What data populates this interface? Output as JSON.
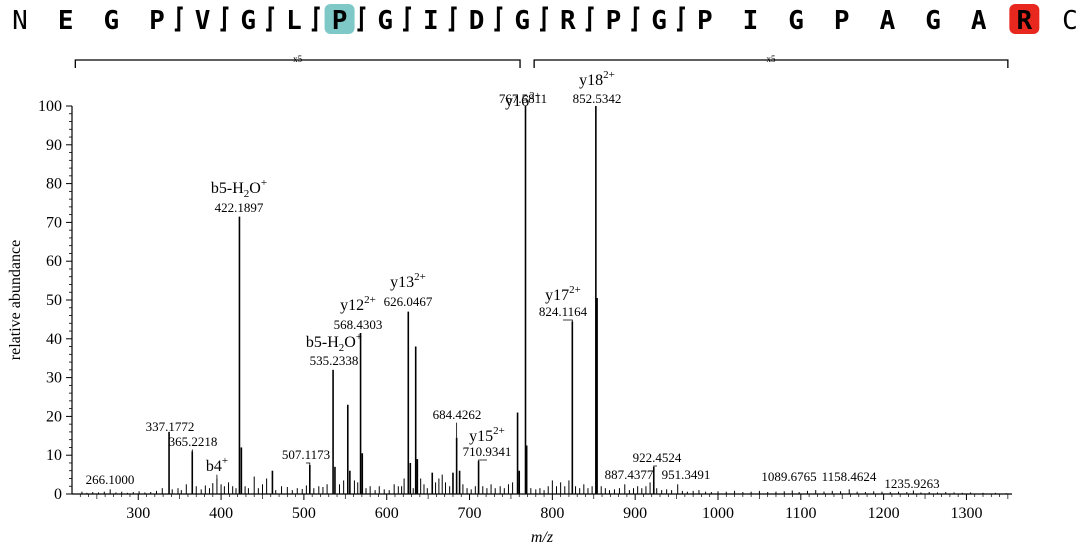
{
  "sequence": {
    "residues": [
      {
        "aa": "N",
        "style": "plain"
      },
      {
        "aa": "E",
        "style": "bold"
      },
      {
        "aa": "G",
        "style": "bold"
      },
      {
        "aa": "P",
        "style": "bold"
      },
      {
        "aa": "V",
        "style": "bold"
      },
      {
        "aa": "G",
        "style": "bold"
      },
      {
        "aa": "L",
        "style": "bold"
      },
      {
        "aa": "P",
        "style": "bold",
        "highlight": "#7ec8c8"
      },
      {
        "aa": "G",
        "style": "bold"
      },
      {
        "aa": "I",
        "style": "bold"
      },
      {
        "aa": "D",
        "style": "bold"
      },
      {
        "aa": "G",
        "style": "bold"
      },
      {
        "aa": "R",
        "style": "bold"
      },
      {
        "aa": "P",
        "style": "bold"
      },
      {
        "aa": "G",
        "style": "bold"
      },
      {
        "aa": "P",
        "style": "bold"
      },
      {
        "aa": "I",
        "style": "bold"
      },
      {
        "aa": "G",
        "style": "bold"
      },
      {
        "aa": "P",
        "style": "bold"
      },
      {
        "aa": "A",
        "style": "bold"
      },
      {
        "aa": "G",
        "style": "bold"
      },
      {
        "aa": "A",
        "style": "bold"
      },
      {
        "aa": "R",
        "style": "bold",
        "highlight": "#e8281e"
      },
      {
        "aa": "C",
        "style": "plain"
      }
    ]
  },
  "chart_data": {
    "type": "bar",
    "xlabel": "m/z",
    "ylabel": "relative abundance",
    "xlim": [
      220,
      1355
    ],
    "ylim": [
      0,
      100
    ],
    "xticks": [
      300,
      400,
      500,
      600,
      700,
      800,
      900,
      1000,
      1100,
      1200,
      1300
    ],
    "yticks": [
      0,
      10,
      20,
      30,
      40,
      50,
      60,
      70,
      80,
      90,
      100
    ],
    "zoom_regions": [
      {
        "label": "x5",
        "from": 224,
        "to": 761
      },
      {
        "label": "x5",
        "from": 778,
        "to": 1350
      }
    ],
    "annotated_ions": [
      {
        "id": "b5w1",
        "name": "b5-H",
        "sub": "2",
        "after": "O",
        "sup": "+",
        "mz": "422.1897",
        "x": 422.19,
        "y": 71.5
      },
      {
        "id": "b5w2",
        "name": "b5-H",
        "sub": "2",
        "after": "O",
        "sup": "+",
        "mz": "535.2338",
        "x": 535.23,
        "y": 32
      },
      {
        "id": "y12",
        "name": "y12",
        "sup": "2+",
        "mz": "568.4303",
        "x": 568.43,
        "y": 41.5
      },
      {
        "id": "y13",
        "name": "y13",
        "sup": "2+",
        "mz": "626.0467",
        "x": 626.05,
        "y": 47
      },
      {
        "id": "y16",
        "name": "y16",
        "sup": "2+",
        "mz": "767.5811",
        "x": 767.58,
        "y": 100
      },
      {
        "id": "y18",
        "name": "y18",
        "sup": "2+",
        "mz": "852.5342",
        "x": 852.53,
        "y": 100
      },
      {
        "id": "y17",
        "name": "y17",
        "sup": "2+",
        "mz": "824.1164",
        "x": 824.12,
        "y": 44.5
      },
      {
        "id": "y15",
        "name": "y15",
        "sup": "2+",
        "mz": "710.9341",
        "x": 710.93,
        "y": 8.5
      },
      {
        "id": "b4",
        "name": "b4",
        "sup": "+",
        "mz": "",
        "x": 395.0,
        "y": 4
      }
    ],
    "peak_labels": [
      {
        "mz": "266.1000",
        "x": 266.1,
        "y": 1.2
      },
      {
        "mz": "337.1772",
        "x": 337.18,
        "y": 16
      },
      {
        "mz": "365.2218",
        "x": 365.22,
        "y": 11
      },
      {
        "mz": "507.1173",
        "x": 507.12,
        "y": 7.5
      },
      {
        "mz": "684.4262",
        "x": 684.43,
        "y": 14.5
      },
      {
        "mz": "887.4377",
        "x": 887.44,
        "y": 2.5
      },
      {
        "mz": "922.4524",
        "x": 922.45,
        "y": 7
      },
      {
        "mz": "951.3491",
        "x": 951.35,
        "y": 2.5
      },
      {
        "mz": "1089.6765",
        "x": 1089.68,
        "y": 0.9
      },
      {
        "mz": "1158.4624",
        "x": 1158.46,
        "y": 1.2
      },
      {
        "mz": "1235.9263",
        "x": 1235.93,
        "y": 0.9
      }
    ],
    "peaks": [
      [
        232,
        0.6
      ],
      [
        238,
        0.3
      ],
      [
        245,
        0.5
      ],
      [
        252,
        0.4
      ],
      [
        259,
        0.6
      ],
      [
        266.1,
        1.2
      ],
      [
        273,
        0.4
      ],
      [
        280,
        0.6
      ],
      [
        287,
        0.3
      ],
      [
        294,
        0.5
      ],
      [
        301,
        0.7
      ],
      [
        308,
        0.4
      ],
      [
        315,
        0.5
      ],
      [
        322,
        0.8
      ],
      [
        329,
        1.5
      ],
      [
        337.18,
        16
      ],
      [
        341,
        1.2
      ],
      [
        348,
        1.5
      ],
      [
        352,
        1.0
      ],
      [
        358,
        2.5
      ],
      [
        365.22,
        11
      ],
      [
        370,
        2.0
      ],
      [
        376,
        1.2
      ],
      [
        381,
        2.2
      ],
      [
        386,
        1.5
      ],
      [
        390,
        2.8
      ],
      [
        395,
        4
      ],
      [
        400,
        2.5
      ],
      [
        404,
        2.0
      ],
      [
        409,
        3.0
      ],
      [
        414,
        2.0
      ],
      [
        418,
        1.5
      ],
      [
        422.19,
        71.5
      ],
      [
        424.5,
        12
      ],
      [
        429,
        2.0
      ],
      [
        433,
        1.5
      ],
      [
        440,
        4.5
      ],
      [
        445,
        1.5
      ],
      [
        450,
        2.5
      ],
      [
        455,
        4
      ],
      [
        462,
        6
      ],
      [
        466,
        1.0
      ],
      [
        473,
        2.0
      ],
      [
        480,
        1.8
      ],
      [
        486,
        1.0
      ],
      [
        492,
        1.5
      ],
      [
        498,
        1.3
      ],
      [
        503,
        2.2
      ],
      [
        507.12,
        7.5
      ],
      [
        512,
        1.5
      ],
      [
        518,
        2.0
      ],
      [
        523,
        1.8
      ],
      [
        528,
        2.5
      ],
      [
        535.23,
        32
      ],
      [
        537.5,
        7
      ],
      [
        543,
        2.5
      ],
      [
        548,
        3.5
      ],
      [
        553,
        23
      ],
      [
        555.5,
        6
      ],
      [
        561,
        3.5
      ],
      [
        565,
        3.0
      ],
      [
        568.43,
        41.5
      ],
      [
        570.5,
        10.5
      ],
      [
        575,
        1.5
      ],
      [
        580,
        2.0
      ],
      [
        586,
        1.0
      ],
      [
        591,
        2.0
      ],
      [
        597,
        1.2
      ],
      [
        603,
        1.0
      ],
      [
        609,
        2.5
      ],
      [
        614,
        2.0
      ],
      [
        618,
        2.0
      ],
      [
        621,
        4.0
      ],
      [
        626.05,
        47
      ],
      [
        628.5,
        8
      ],
      [
        632,
        1.5
      ],
      [
        635,
        38
      ],
      [
        637,
        9
      ],
      [
        641,
        4.0
      ],
      [
        645,
        2.5
      ],
      [
        649,
        1.5
      ],
      [
        655,
        5.5
      ],
      [
        659,
        3.0
      ],
      [
        663,
        4.0
      ],
      [
        667,
        5
      ],
      [
        671,
        3.0
      ],
      [
        676,
        2.0
      ],
      [
        680,
        5.5
      ],
      [
        684.43,
        14.5
      ],
      [
        688,
        6
      ],
      [
        692,
        2.5
      ],
      [
        697,
        1.5
      ],
      [
        702,
        1.2
      ],
      [
        707,
        2.0
      ],
      [
        710.93,
        8.5
      ],
      [
        716,
        2.0
      ],
      [
        721,
        1.5
      ],
      [
        726,
        2.5
      ],
      [
        731,
        1.5
      ],
      [
        737,
        2.0
      ],
      [
        742,
        1.5
      ],
      [
        747,
        2.5
      ],
      [
        752,
        3.0
      ],
      [
        758,
        21
      ],
      [
        760,
        6
      ],
      [
        767.58,
        100
      ],
      [
        769,
        12.5
      ],
      [
        774,
        1.5
      ],
      [
        780,
        1.2
      ],
      [
        785,
        1.5
      ],
      [
        790,
        1.0
      ],
      [
        795,
        2.0
      ],
      [
        800,
        3.5
      ],
      [
        805,
        2.0
      ],
      [
        810,
        3.0
      ],
      [
        815,
        2.0
      ],
      [
        820,
        3.5
      ],
      [
        824.12,
        44.5
      ],
      [
        828,
        2.0
      ],
      [
        833,
        1.5
      ],
      [
        838,
        2.5
      ],
      [
        843,
        1.5
      ],
      [
        848,
        2.0
      ],
      [
        852.53,
        100
      ],
      [
        854,
        50.5
      ],
      [
        859,
        2.0
      ],
      [
        864,
        1.5
      ],
      [
        869,
        1.0
      ],
      [
        875,
        1.2
      ],
      [
        881,
        1.5
      ],
      [
        887.44,
        2.5
      ],
      [
        893,
        1.0
      ],
      [
        898,
        1.5
      ],
      [
        903,
        2.0
      ],
      [
        908,
        1.5
      ],
      [
        913,
        2.0
      ],
      [
        918,
        3.0
      ],
      [
        922.45,
        7
      ],
      [
        926,
        1.5
      ],
      [
        932,
        1.0
      ],
      [
        938,
        1.2
      ],
      [
        944,
        1.0
      ],
      [
        951.35,
        2.5
      ],
      [
        957,
        0.8
      ],
      [
        963,
        0.6
      ],
      [
        970,
        0.8
      ],
      [
        977,
        1.0
      ],
      [
        985,
        0.6
      ],
      [
        992,
        0.5
      ],
      [
        1000,
        0.7
      ],
      [
        1010,
        0.6
      ],
      [
        1020,
        0.8
      ],
      [
        1030,
        0.5
      ],
      [
        1040,
        0.6
      ],
      [
        1050,
        0.8
      ],
      [
        1060,
        0.5
      ],
      [
        1070,
        0.6
      ],
      [
        1080,
        0.7
      ],
      [
        1089.68,
        0.9
      ],
      [
        1098,
        0.5
      ],
      [
        1108,
        0.8
      ],
      [
        1118,
        1.0
      ],
      [
        1128,
        0.6
      ],
      [
        1138,
        0.8
      ],
      [
        1148,
        0.7
      ],
      [
        1158.46,
        1.2
      ],
      [
        1168,
        0.6
      ],
      [
        1178,
        0.5
      ],
      [
        1188,
        0.7
      ],
      [
        1198,
        0.6
      ],
      [
        1208,
        0.5
      ],
      [
        1218,
        0.6
      ],
      [
        1228,
        0.5
      ],
      [
        1235.93,
        0.9
      ],
      [
        1245,
        0.4
      ],
      [
        1255,
        0.5
      ],
      [
        1265,
        0.4
      ],
      [
        1275,
        0.5
      ],
      [
        1285,
        0.4
      ],
      [
        1295,
        0.3
      ],
      [
        1305,
        0.4
      ],
      [
        1320,
        0.3
      ],
      [
        1335,
        0.3
      ],
      [
        1348,
        0.2
      ]
    ]
  }
}
